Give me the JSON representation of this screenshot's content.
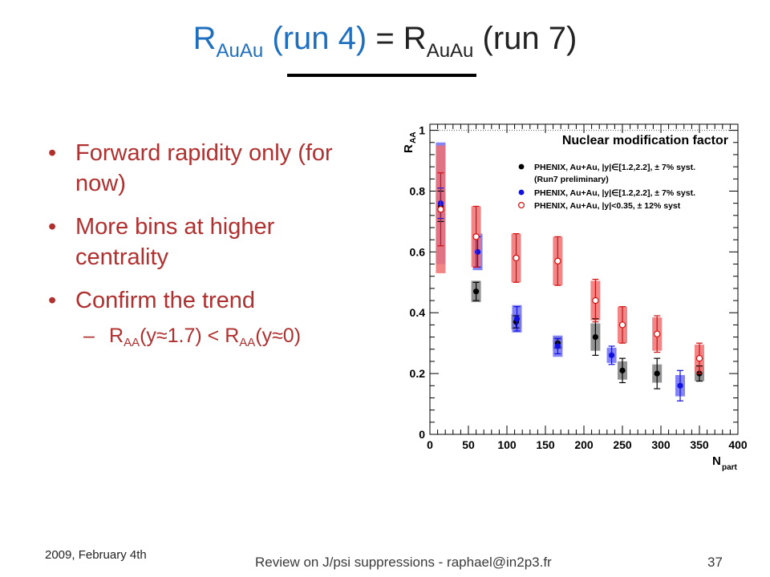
{
  "slide": {
    "title_parts": [
      "R",
      "AuAu",
      " (run 4)",
      " = R",
      "AuAu",
      " (run 7)"
    ],
    "bullets": [
      "Forward rapidity only (for now)",
      "More bins at higher centrality",
      "Confirm the trend"
    ],
    "sub_bullet": {
      "r1": "R",
      "s1": "AA",
      "t1": "(y≈1.7) < R",
      "s2": "AA",
      "t2": "(y≈0)"
    },
    "footer_date": "2009, February 4th",
    "footer_center": "Review on J/psi suppressions - raphael@in2p3.fr",
    "page_number": "37"
  },
  "chart_data": {
    "type": "scatter",
    "title": "Nuclear modification factor",
    "xlabel": "N",
    "xlabel_sub": "part",
    "ylabel": "R",
    "ylabel_sub": "AA",
    "xlim": [
      0,
      400
    ],
    "ylim": [
      0,
      1.02
    ],
    "xticks": [
      0,
      50,
      100,
      150,
      200,
      250,
      300,
      350,
      400
    ],
    "yticks": [
      0,
      0.2,
      0.4,
      0.6,
      0.8,
      1
    ],
    "ytick_labels": [
      "0",
      "0.2",
      "0.4",
      "0.6",
      "0.8",
      "1"
    ],
    "reference_line": 1,
    "legend_position": "top-right",
    "series": [
      {
        "name": "PHENIX, Au+Au, |y|∈[1.2,2.2], ± 7% syst.",
        "name_line2": "(Run7 preliminary)",
        "color": "#000000",
        "box_color": "#808080",
        "marker": "filled-circle",
        "points": [
          {
            "x": 14,
            "y": 0.75,
            "err": 0.05,
            "sys": 0.04
          },
          {
            "x": 60,
            "y": 0.47,
            "err": 0.03,
            "sys": 0.035
          },
          {
            "x": 112,
            "y": 0.37,
            "err": 0.02,
            "sys": 0.025
          },
          {
            "x": 166,
            "y": 0.3,
            "err": 0.015,
            "sys": 0.02
          },
          {
            "x": 215,
            "y": 0.32,
            "err": 0.06,
            "sys": 0.045
          },
          {
            "x": 250,
            "y": 0.21,
            "err": 0.04,
            "sys": 0.03
          },
          {
            "x": 295,
            "y": 0.2,
            "err": 0.05,
            "sys": 0.03
          },
          {
            "x": 350,
            "y": 0.2,
            "err": 0.025,
            "sys": 0.025
          }
        ]
      },
      {
        "name": "PHENIX, Au+Au, |y|∈[1.2,2.2], ± 7% syst.",
        "color": "#1010e0",
        "box_color": "#6e6ef5",
        "marker": "filled-circle",
        "points": [
          {
            "x": 14,
            "y": 0.76,
            "err": 0.05,
            "sys": 0.2
          },
          {
            "x": 62,
            "y": 0.6,
            "err": 0.05,
            "sys": 0.06
          },
          {
            "x": 113,
            "y": 0.38,
            "err": 0.04,
            "sys": 0.045
          },
          {
            "x": 166,
            "y": 0.29,
            "err": 0.025,
            "sys": 0.035
          },
          {
            "x": 236,
            "y": 0.26,
            "err": 0.03,
            "sys": 0.025
          },
          {
            "x": 325,
            "y": 0.16,
            "err": 0.05,
            "sys": 0.035
          }
        ]
      },
      {
        "name": "PHENIX, Au+Au, |y|<0.35, ± 12% syst",
        "color": "#d01010",
        "box_color": "#f07070",
        "marker": "open-circle",
        "points": [
          {
            "x": 14,
            "y": 0.74,
            "err": 0.12,
            "sys": 0.21
          },
          {
            "x": 60,
            "y": 0.65,
            "err": 0.1,
            "sys": 0.1
          },
          {
            "x": 112,
            "y": 0.58,
            "err": 0.08,
            "sys": 0.08
          },
          {
            "x": 166,
            "y": 0.57,
            "err": 0.08,
            "sys": 0.08
          },
          {
            "x": 215,
            "y": 0.44,
            "err": 0.07,
            "sys": 0.065
          },
          {
            "x": 250,
            "y": 0.36,
            "err": 0.06,
            "sys": 0.06
          },
          {
            "x": 295,
            "y": 0.33,
            "err": 0.06,
            "sys": 0.055
          },
          {
            "x": 350,
            "y": 0.25,
            "err": 0.05,
            "sys": 0.045
          }
        ]
      }
    ]
  }
}
